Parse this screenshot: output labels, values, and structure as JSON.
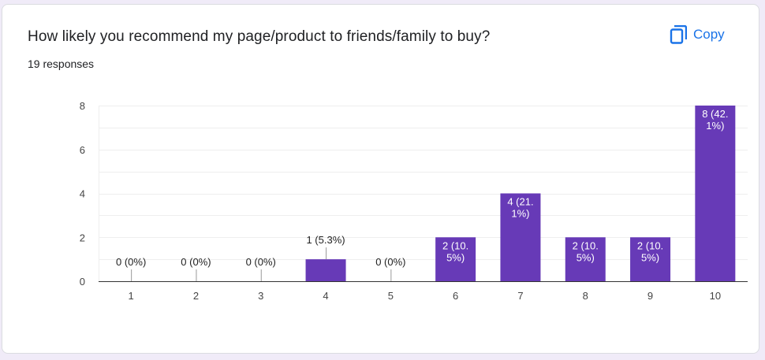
{
  "card": {
    "title": "How likely you recommend my page/product to friends/family to buy?",
    "subtitle": "19 responses",
    "copy_label": "Copy",
    "copy_icon": "copy-icon"
  },
  "colors": {
    "bar": "#673ab7",
    "accent": "#1a73e8",
    "grid": "#eeeeee",
    "axis": "#333333"
  },
  "chart_data": {
    "type": "bar",
    "categories": [
      "1",
      "2",
      "3",
      "4",
      "5",
      "6",
      "7",
      "8",
      "9",
      "10"
    ],
    "values": [
      0,
      0,
      0,
      1,
      0,
      2,
      4,
      2,
      2,
      8
    ],
    "data_labels": [
      [
        "0 (0%)"
      ],
      [
        "0 (0%)"
      ],
      [
        "0 (0%)"
      ],
      [
        "1 (5.3%)"
      ],
      [
        "0 (0%)"
      ],
      [
        "2 (10.",
        "5%)"
      ],
      [
        "4 (21.",
        "1%)"
      ],
      [
        "2 (10.",
        "5%)"
      ],
      [
        "2 (10.",
        "5%)"
      ],
      [
        "8 (42.",
        "1%)"
      ]
    ],
    "yticks": [
      0,
      2,
      4,
      6,
      8
    ],
    "ylim": [
      0,
      8
    ],
    "grid": true,
    "legend": "none"
  }
}
